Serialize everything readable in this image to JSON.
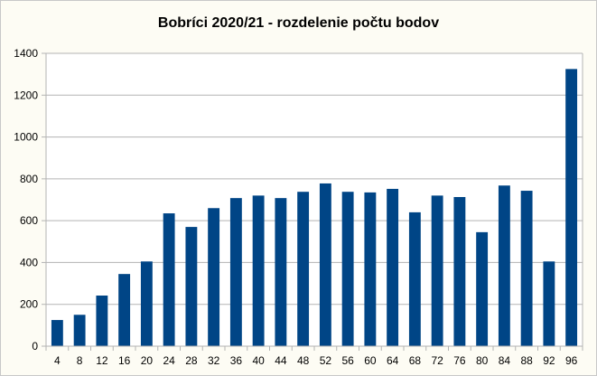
{
  "chart_data": {
    "type": "bar",
    "title": "Bobríci 2020/21 - rozdelenie počtu bodov",
    "xlabel": "",
    "ylabel": "",
    "ylim": [
      0,
      1400
    ],
    "yticks": [
      0,
      200,
      400,
      600,
      800,
      1000,
      1200,
      1400
    ],
    "grid": true,
    "legend": "none",
    "bar_color": "#004586",
    "categories": [
      "4",
      "8",
      "12",
      "16",
      "20",
      "24",
      "28",
      "32",
      "36",
      "40",
      "44",
      "48",
      "52",
      "56",
      "60",
      "64",
      "68",
      "72",
      "76",
      "80",
      "84",
      "88",
      "92",
      "96"
    ],
    "values": [
      125,
      150,
      242,
      345,
      405,
      635,
      570,
      660,
      708,
      720,
      708,
      738,
      778,
      738,
      735,
      752,
      640,
      720,
      713,
      545,
      768,
      743,
      405,
      1325
    ]
  }
}
